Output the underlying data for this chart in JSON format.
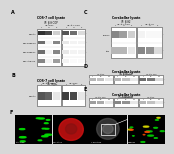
{
  "bg_color": "#d8d8d8",
  "panel_labels": [
    "A",
    "B",
    "C",
    "D",
    "E",
    "F"
  ],
  "panels": {
    "A": {
      "title": "COS-7 cell lysate",
      "subtitle": "IP: β-δ COP",
      "col_groups": [
        {
          "label": "IB: myc",
          "cols": [
            "L",
            "IP",
            "FT"
          ]
        },
        {
          "label": "IB: β-δ COP",
          "cols": [
            "L",
            "IP",
            "FT"
          ]
        }
      ],
      "rows": [
        {
          "label": "myc-β-δ",
          "bands_l": [
            0.85,
            0.75,
            0.2
          ],
          "bands_r": [
            0.7,
            0.6,
            0.15
          ]
        },
        {
          "label": "myc-GluRB-2a",
          "bands_l": [
            0.6,
            0.05,
            0.5
          ],
          "bands_r": [
            0.1,
            0.05,
            0.05
          ]
        },
        {
          "label": "myc-GluRB-2c",
          "bands_l": [
            0.6,
            0.05,
            0.5
          ],
          "bands_r": [
            0.1,
            0.05,
            0.05
          ]
        },
        {
          "label": "myc-δ-tubulin",
          "bands_l": [
            0.5,
            0.05,
            0.4
          ],
          "bands_r": [
            0.05,
            0.02,
            0.02
          ]
        }
      ]
    },
    "B": {
      "title": "COS-7 cell lysate",
      "subtitle": "IP: myc",
      "col_groups": [
        {
          "label": "IB: β-δ COP",
          "cols": [
            "L",
            "IP",
            "FT"
          ]
        },
        {
          "label": "IB: myc",
          "cols": [
            "L",
            "IP",
            "FT"
          ]
        }
      ],
      "rows": [
        {
          "label": "myc-β-δ",
          "bands_l": [
            0.7,
            0.65,
            0.1
          ],
          "bands_r": [
            0.8,
            0.75,
            0.1
          ]
        }
      ]
    },
    "C": {
      "title": "Cerebellar lysate",
      "subtitle": "IP: β-δ2",
      "col_groups": [
        {
          "label": "IB: β-δ COP",
          "cols": [
            "L",
            "IP",
            "FT"
          ]
        },
        {
          "label": "IB: β-δ2",
          "cols": [
            "L",
            "IP",
            "FT"
          ]
        }
      ],
      "rows": [
        {
          "label": "GluR-ε2",
          "bands_l": [
            0.5,
            0.4,
            0.2
          ],
          "bands_r": [
            0.05,
            0.03,
            0.03
          ]
        },
        {
          "label": "β-δ2",
          "bands_l": [
            0.3,
            0.3,
            0.1
          ],
          "bands_r": [
            0.5,
            0.45,
            0.15
          ]
        }
      ]
    },
    "D": {
      "title": "Cerebellar lysate",
      "subtitle": "IP: β-δ COP",
      "col_groups_sets": [
        {
          "label": "IB: β-δ2",
          "cols": [
            "L",
            "IP",
            "FT"
          ]
        },
        {
          "label": "IB: δ-Ankrd7*",
          "cols": [
            "L",
            "IP",
            "FT"
          ]
        },
        {
          "label": "IB: β-δ COP",
          "cols": [
            "L",
            "IP",
            "FT"
          ]
        }
      ],
      "rows": [
        {
          "label": "",
          "bands": [
            0.3,
            0.25,
            0.1,
            0.3,
            0.25,
            0.1,
            0.6,
            0.55,
            0.15
          ]
        }
      ]
    },
    "E": {
      "title": "Cerebellar lysate",
      "subtitle": "IP: δ-Ankrd7",
      "col_groups_sets": [
        {
          "label": "IB: β-δ COP",
          "cols": [
            "L",
            "IP",
            "FT"
          ]
        },
        {
          "label": "IB: δ-Ankrd7*",
          "cols": [
            "L",
            "IP",
            "FT"
          ]
        },
        {
          "label": "IB: β-δ2",
          "cols": [
            "L",
            "IP",
            "FT"
          ]
        }
      ],
      "rows": [
        {
          "label": "",
          "bands": [
            0.4,
            0.35,
            0.1,
            0.5,
            0.45,
            0.1,
            0.3,
            0.25,
            0.1
          ]
        }
      ]
    },
    "F": {
      "panels": [
        "β-δ COP",
        "myc-β-δ2",
        "δ Position",
        "Overlay"
      ],
      "bg_colors": [
        "#000000",
        "#000000",
        "#111111",
        "#000000"
      ]
    }
  }
}
